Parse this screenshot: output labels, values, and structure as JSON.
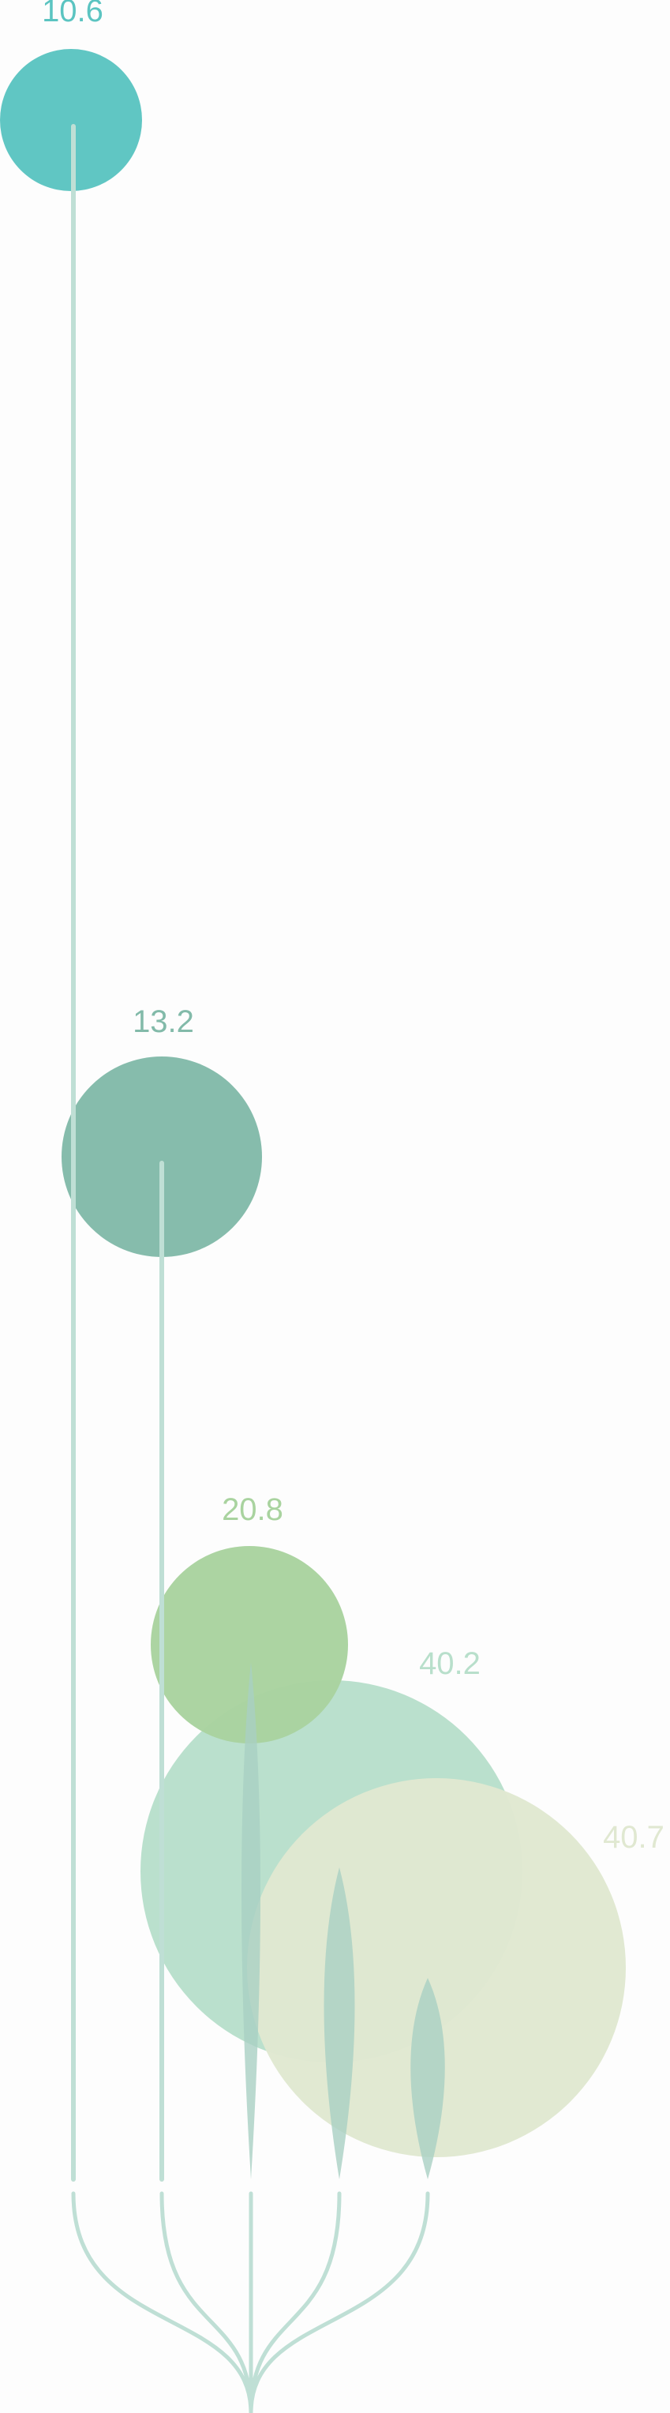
{
  "chart_data": {
    "type": "bubble-tree",
    "series": [
      {
        "value": 10.6,
        "label": "10.6",
        "color": "#5bc4c1"
      },
      {
        "value": 13.2,
        "label": "13.2",
        "color": "#82baa9"
      },
      {
        "value": 20.8,
        "label": "20.8",
        "color": "#a9d39f"
      },
      {
        "value": 40.2,
        "label": "40.2",
        "color": "#b8dfcb"
      },
      {
        "value": 40.7,
        "label": "40.7",
        "color": "#e0e8d1"
      }
    ],
    "stem_color": "#bfdfd5",
    "title": "",
    "grid": false,
    "legend": "none"
  }
}
